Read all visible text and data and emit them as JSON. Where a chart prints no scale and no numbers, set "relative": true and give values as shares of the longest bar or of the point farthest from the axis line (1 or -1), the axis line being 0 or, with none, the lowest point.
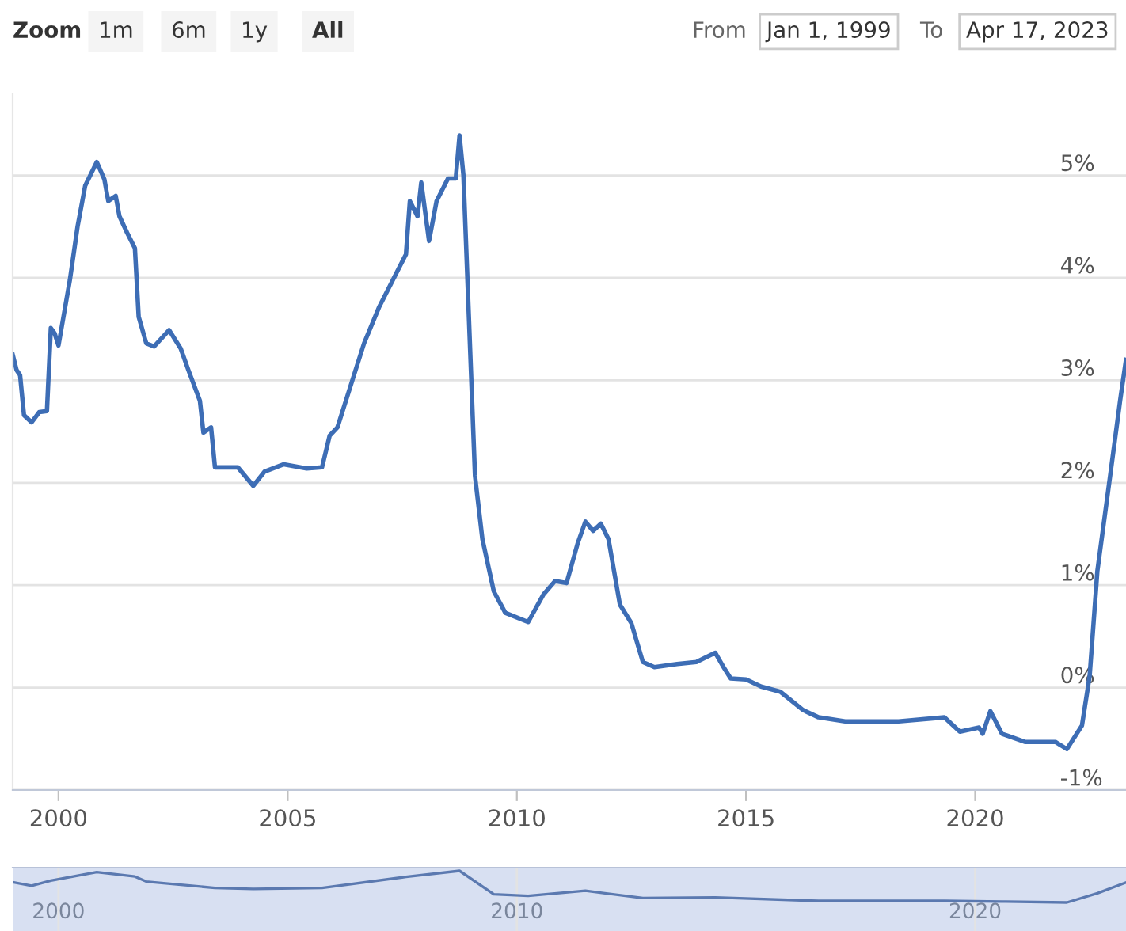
{
  "chart_data": [
    {
      "type": "line",
      "color": "#3d6db5",
      "grid": "y",
      "annotations": [
        "Zoom",
        "1m",
        "6m",
        "1y",
        "All",
        "From",
        "Jan 1, 1999",
        "To",
        "Apr 17, 2023"
      ],
      "x": [
        "1999-01",
        "1999-02",
        "1999-03",
        "1999-04",
        "1999-06",
        "1999-08",
        "1999-10",
        "1999-11",
        "1999-12",
        "2000-01",
        "2000-04",
        "2000-06",
        "2000-08",
        "2000-11",
        "2001-01",
        "2001-02",
        "2001-04",
        "2001-05",
        "2001-07",
        "2001-09",
        "2001-10",
        "2001-12",
        "2002-02",
        "2002-06",
        "2002-09",
        "2002-11",
        "2003-02",
        "2003-03",
        "2003-05",
        "2003-06",
        "2003-09",
        "2003-12",
        "2004-04",
        "2004-07",
        "2004-12",
        "2005-06",
        "2005-10",
        "2005-12",
        "2006-02",
        "2006-09",
        "2007-01",
        "2007-08",
        "2007-09",
        "2007-11",
        "2007-12",
        "2008-02",
        "2008-04",
        "2008-07",
        "2008-09",
        "2008-10",
        "2008-11",
        "2009-02",
        "2009-04",
        "2009-07",
        "2009-10",
        "2010-04",
        "2010-08",
        "2010-11",
        "2011-02",
        "2011-05",
        "2011-07",
        "2011-09",
        "2011-11",
        "2012-01",
        "2012-04",
        "2012-07",
        "2012-10",
        "2013-01",
        "2013-07",
        "2013-12",
        "2014-05",
        "2014-07",
        "2014-09",
        "2015-01",
        "2015-05",
        "2015-10",
        "2016-04",
        "2016-08",
        "2017-03",
        "2018-05",
        "2019-05",
        "2019-09",
        "2020-02",
        "2020-03",
        "2020-05",
        "2020-08",
        "2021-02",
        "2021-10",
        "2022-01",
        "2022-05",
        "2022-07",
        "2022-09",
        "2022-12",
        "2023-03",
        "2023-04-17"
      ],
      "values": [
        3.25,
        3.1,
        3.05,
        2.66,
        2.59,
        2.69,
        2.7,
        3.51,
        3.46,
        3.34,
        3.98,
        4.5,
        4.9,
        5.13,
        4.96,
        4.75,
        4.8,
        4.6,
        4.44,
        4.29,
        3.62,
        3.36,
        3.33,
        3.49,
        3.31,
        3.1,
        2.8,
        2.49,
        2.54,
        2.15,
        2.15,
        2.15,
        1.97,
        2.11,
        2.18,
        2.14,
        2.15,
        2.46,
        2.54,
        3.36,
        3.72,
        4.23,
        4.75,
        4.6,
        4.93,
        4.36,
        4.75,
        4.97,
        4.97,
        5.39,
        5.0,
        2.07,
        1.45,
        0.94,
        0.73,
        0.64,
        0.91,
        1.04,
        1.02,
        1.41,
        1.62,
        1.53,
        1.6,
        1.45,
        0.81,
        0.63,
        0.25,
        0.2,
        0.23,
        0.25,
        0.34,
        0.21,
        0.09,
        0.08,
        0.01,
        -0.04,
        -0.22,
        -0.29,
        -0.33,
        -0.33,
        -0.29,
        -0.43,
        -0.39,
        -0.45,
        -0.23,
        -0.45,
        -0.53,
        -0.53,
        -0.6,
        -0.37,
        0.11,
        1.14,
        1.97,
        2.8,
        3.2
      ],
      "xlim": [
        "1999-01-01",
        "2023-04-17"
      ],
      "xticks": [
        {
          "value": "2000-01-01",
          "label": "2000"
        },
        {
          "value": "2005-01-01",
          "label": "2005"
        },
        {
          "value": "2010-01-01",
          "label": "2010"
        },
        {
          "value": "2015-01-01",
          "label": "2015"
        },
        {
          "value": "2020-01-01",
          "label": "2020"
        }
      ],
      "ylim": [
        -1,
        5.8
      ],
      "yticks": [
        {
          "value": -1,
          "label": "-1%"
        },
        {
          "value": 0,
          "label": "0%"
        },
        {
          "value": 1,
          "label": "1%"
        },
        {
          "value": 2,
          "label": "2%"
        },
        {
          "value": 3,
          "label": "3%"
        },
        {
          "value": 4,
          "label": "4%"
        },
        {
          "value": 5,
          "label": "5%"
        }
      ]
    },
    {
      "type": "line",
      "color": "#5b79b0",
      "relative": true,
      "grid": "x",
      "x": [
        "1999-01",
        "1999-06",
        "1999-11",
        "2000-11",
        "2001-09",
        "2001-12",
        "2003-06",
        "2004-04",
        "2005-10",
        "2007-08",
        "2008-10",
        "2009-07",
        "2010-04",
        "2011-07",
        "2012-10",
        "2014-05",
        "2016-08",
        "2019-05",
        "2020-08",
        "2022-01",
        "2022-09",
        "2023-04-17"
      ],
      "values": [
        0.64,
        0.53,
        0.69,
        0.96,
        0.82,
        0.66,
        0.46,
        0.43,
        0.46,
        0.81,
        1,
        0.26,
        0.21,
        0.37,
        0.14,
        0.16,
        0.05,
        0.05,
        0.03,
        0,
        0.29,
        0.63
      ],
      "xlim": [
        "1999-01-01",
        "2023-04-17"
      ],
      "xticks": [
        {
          "value": "2000-01-01",
          "label": "2000"
        },
        {
          "value": "2010-01-01",
          "label": "2010"
        },
        {
          "value": "2020-01-01",
          "label": "2020"
        }
      ]
    }
  ]
}
